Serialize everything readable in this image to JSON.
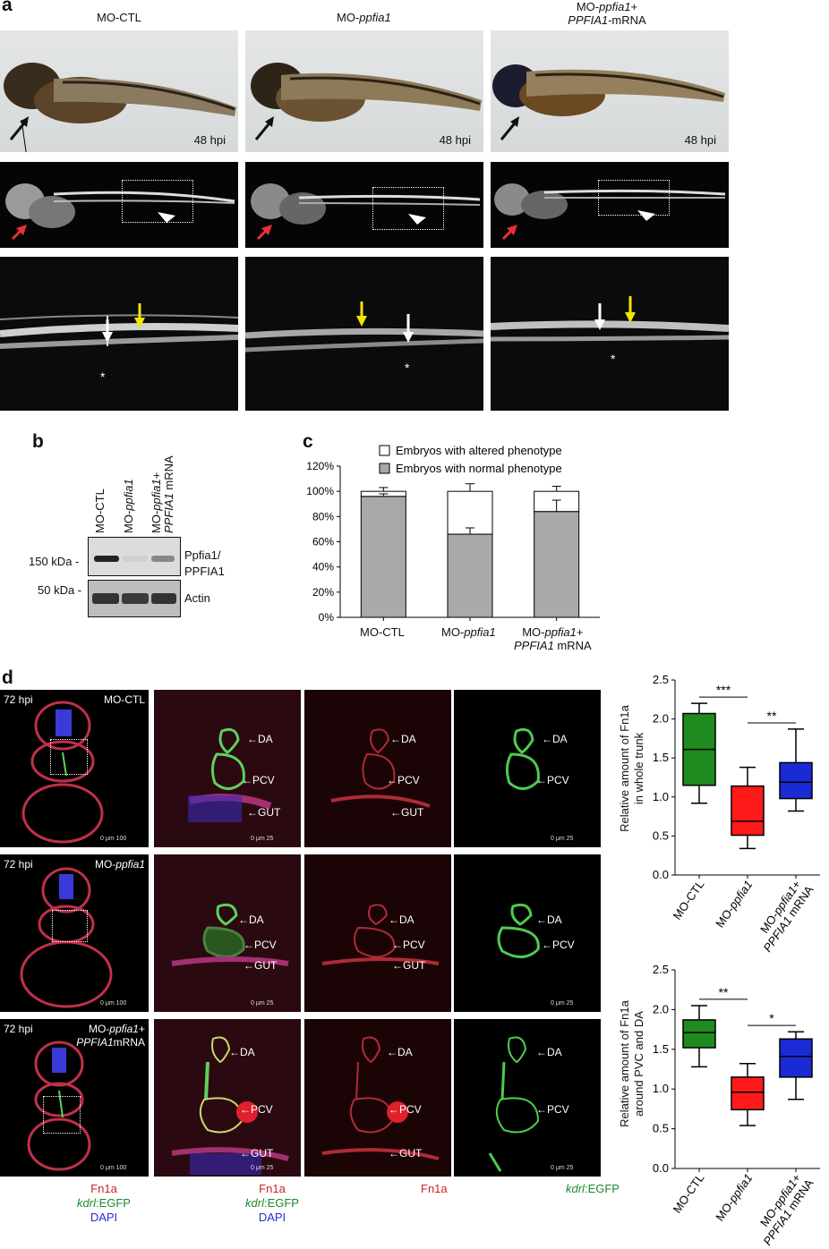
{
  "panel_a": {
    "label": "a",
    "col_titles": [
      {
        "pre": "MO-CTL",
        "ital": "",
        "post": "",
        "line2": "",
        "line2_ital": ""
      },
      {
        "pre": "MO-",
        "ital": "ppfia1",
        "post": "",
        "line2": "",
        "line2_ital": ""
      },
      {
        "pre": "MO-",
        "ital": "ppfia1",
        "post": "+",
        "line2": "-mRNA",
        "line2_ital": "PPFIA1"
      }
    ],
    "hpi_label": "48 hpi",
    "asterisk": "*"
  },
  "panel_b": {
    "label": "b",
    "lanes": [
      {
        "pre": "MO-CTL",
        "ital": "",
        "post": ""
      },
      {
        "pre": "MO-",
        "ital": "ppfia1",
        "post": ""
      },
      {
        "pre": "MO-",
        "ital": "ppfia1",
        "post": "+"
      }
    ],
    "lane3_line2_ital": "PPFIA1",
    "lane3_line2_post": " mRNA",
    "marker_150": "150 kDa -",
    "marker_50": "50 kDa -",
    "band_top": "Ppfia1/",
    "band_top2": "PPFIA1",
    "band_bottom": "Actin"
  },
  "panel_c": {
    "label": "c",
    "legend_altered": "Embryos with altered phenotype",
    "legend_normal": "Embryos with normal phenotype",
    "color_altered": "#ffffff",
    "color_normal": "#a9a9a9",
    "categories": [
      {
        "pre": "MO-CTL",
        "ital": "",
        "line2": ""
      },
      {
        "pre": "MO-",
        "ital": "ppfia1",
        "line2": ""
      },
      {
        "pre": "MO-",
        "ital": "ppfia1",
        "line2": "+"
      }
    ],
    "cat3_line2_ital": "PPFIA1",
    "cat3_line2_post": " mRNA",
    "yticks": [
      "0%",
      "20%",
      "40%",
      "60%",
      "80%",
      "100%",
      "120%"
    ]
  },
  "chart_data": [
    {
      "type": "bar",
      "stacked": true,
      "categories": [
        "MO-CTL",
        "MO-ppfia1",
        "MO-ppfia1+ PPFIA1 mRNA"
      ],
      "series": [
        {
          "name": "Embryos with normal phenotype",
          "values": [
            96,
            66,
            84
          ],
          "error": [
            2,
            5,
            9
          ]
        },
        {
          "name": "Embryos with altered phenotype",
          "values": [
            4,
            34,
            16
          ],
          "error": [
            3,
            6,
            4
          ]
        }
      ],
      "ylim": [
        0,
        120
      ],
      "ytick_suffix": "%"
    },
    {
      "type": "box",
      "ylabel": "Relative amount of Fn1a in whole trunk",
      "ylim": [
        0,
        2.5
      ],
      "yticks": [
        "0.0",
        "0.5",
        "1.0",
        "1.5",
        "2.0",
        "2.5"
      ],
      "categories": [
        "MO-CTL",
        "MO-ppfia1",
        "MO-ppfia1+ PPFIA1 mRNA"
      ],
      "colors": [
        "#1f8a1f",
        "#ff1a1a",
        "#1a2bd6"
      ],
      "boxes": [
        {
          "min": 0.92,
          "q1": 1.15,
          "median": 1.61,
          "q3": 2.07,
          "max": 2.2
        },
        {
          "min": 0.34,
          "q1": 0.51,
          "median": 0.69,
          "q3": 1.14,
          "max": 1.38
        },
        {
          "min": 0.82,
          "q1": 0.98,
          "median": 1.19,
          "q3": 1.44,
          "max": 1.87
        }
      ],
      "significance": [
        "***",
        "**"
      ]
    },
    {
      "type": "box",
      "ylabel": "Relative amount of Fn1a around PVC and DA",
      "ylim": [
        0,
        2.5
      ],
      "yticks": [
        "0.0",
        "0.5",
        "1.0",
        "1.5",
        "2.0",
        "2.5"
      ],
      "categories": [
        "MO-CTL",
        "MO-ppfia1",
        "MO-ppfia1+ PPFIA1 mRNA"
      ],
      "colors": [
        "#1f8a1f",
        "#ff1a1a",
        "#1a2bd6"
      ],
      "boxes": [
        {
          "min": 1.28,
          "q1": 1.52,
          "median": 1.71,
          "q3": 1.87,
          "max": 2.05
        },
        {
          "min": 0.54,
          "q1": 0.74,
          "median": 0.96,
          "q3": 1.15,
          "max": 1.32
        },
        {
          "min": 0.87,
          "q1": 1.15,
          "median": 1.41,
          "q3": 1.63,
          "max": 1.72
        }
      ],
      "significance": [
        "**",
        "*"
      ]
    }
  ],
  "panel_d": {
    "label": "d",
    "hpi": "72 hpi",
    "rows": [
      {
        "pre": "MO-CTL",
        "ital": "",
        "post": "",
        "line2_ital": "",
        "line2_post": ""
      },
      {
        "pre": "MO-",
        "ital": "ppfia1",
        "post": "",
        "line2_ital": "",
        "line2_post": ""
      },
      {
        "pre": "MO-",
        "ital": "ppfia1",
        "post": "+",
        "line2_ital": "PPFIA1",
        "line2_post": "mRNA"
      }
    ],
    "da": "←DA",
    "pcv": "←PCV",
    "gut": "←GUT",
    "scale_100": "0     μm    100",
    "scale_25": "0     μm     25",
    "legend_fn1a": "Fn1a",
    "legend_kdrl_ital": "kdrl",
    "legend_kdrl_post": ":EGFP",
    "legend_dapi": "DAPI",
    "plot_box_labels": [
      {
        "pre": "MO-CTL",
        "ital": ""
      },
      {
        "pre": "MO-",
        "ital": "ppfia1"
      },
      {
        "pre": "MO-",
        "ital": "ppfia1",
        "post": "+"
      }
    ],
    "box_lab3_line2_ital": "PPFIA1",
    "box_lab3_line2_post": " mRNA",
    "plot1_ylabel_1": "Relative amount of Fn1a",
    "plot1_ylabel_2": "in whole trunk",
    "plot2_ylabel_1": "Relative amount of Fn1a",
    "plot2_ylabel_2": "around PVC and DA"
  }
}
